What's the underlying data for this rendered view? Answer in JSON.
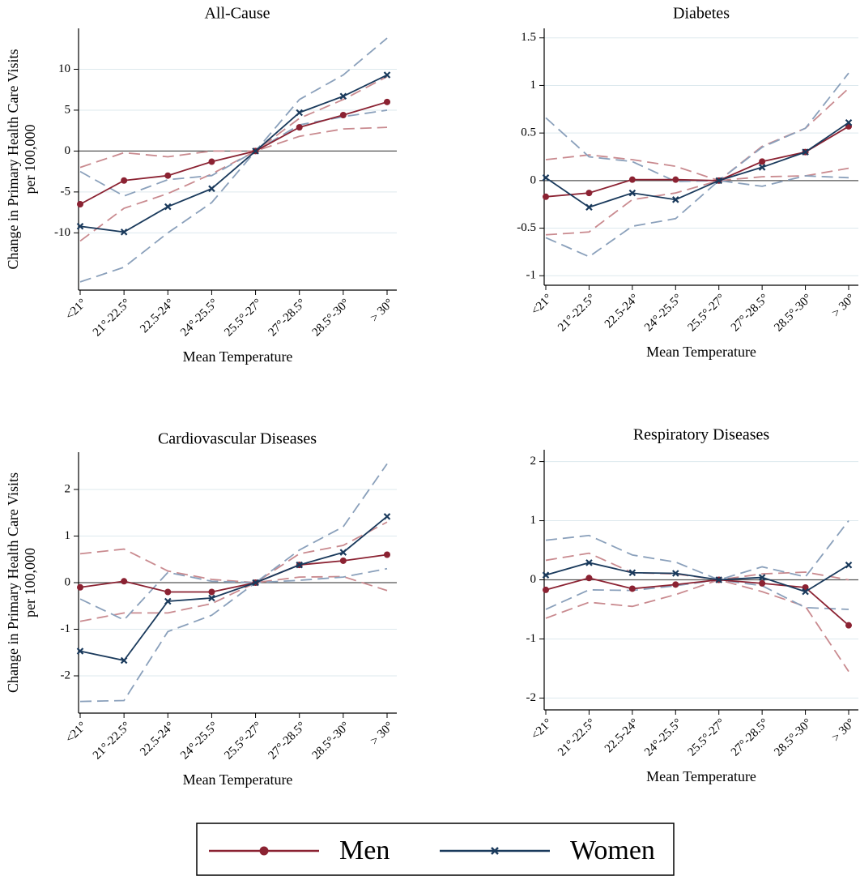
{
  "chart_data": [
    {
      "type": "line",
      "title": "All-Cause",
      "ylabel": [
        "Change in Primary Health Care Visits",
        "per 100,000"
      ],
      "xlabel": "Mean Temperature",
      "categories": [
        "<21°",
        "21°-22.5°",
        "22.5-24°",
        "24°-25.5°",
        "25.5°-27°",
        "27°-28.5°",
        "28.5°-30°",
        "> 30°"
      ],
      "ylim": [
        -17,
        15
      ],
      "yticks": [
        -10,
        -5,
        0,
        5,
        10
      ],
      "grid": true,
      "series": [
        {
          "name": "Men",
          "color": "#8b2232",
          "ci_color": "#c98a8f",
          "marker": "circle",
          "values": [
            -6.5,
            -3.6,
            -3.0,
            -1.3,
            0,
            2.9,
            4.4,
            6.0
          ],
          "ci_lower": [
            -11,
            -7,
            -5.2,
            -2.8,
            0,
            1.8,
            2.7,
            2.9
          ],
          "ci_upper": [
            -2,
            -0.2,
            -0.7,
            0,
            0,
            4,
            6.3,
            9.1
          ]
        },
        {
          "name": "Women",
          "color": "#1a3a5c",
          "ci_color": "#8aa0bb",
          "marker": "x",
          "values": [
            -9.2,
            -9.9,
            -6.8,
            -4.6,
            0,
            4.7,
            6.7,
            9.3
          ],
          "ci_lower": [
            -16,
            -14.2,
            -10,
            -6.3,
            0,
            3.2,
            4.2,
            5
          ],
          "ci_upper": [
            -2.5,
            -5.5,
            -3.5,
            -3,
            0,
            6.3,
            9.3,
            13.8
          ]
        }
      ]
    },
    {
      "type": "line",
      "title": "Diabetes",
      "xlabel": "Mean Temperature",
      "categories": [
        "<21°",
        "21°-22.5°",
        "22.5-24°",
        "24°-25.5°",
        "25.5°-27°",
        "27°-28.5°",
        "28.5°-30°",
        "> 30°"
      ],
      "ylim": [
        -1.1,
        1.6
      ],
      "yticks": [
        -1,
        -0.5,
        0,
        0.5,
        1,
        1.5
      ],
      "grid": true,
      "series": [
        {
          "color": "#8b2232",
          "ci_color": "#c98a8f",
          "marker": "circle",
          "values": [
            -0.17,
            -0.13,
            0.01,
            0.01,
            0,
            0.2,
            0.3,
            0.57
          ],
          "ci_lower": [
            -0.57,
            -0.54,
            -0.2,
            -0.13,
            0,
            0.04,
            0.05,
            0.13
          ],
          "ci_upper": [
            0.22,
            0.27,
            0.22,
            0.15,
            0,
            0.36,
            0.55,
            0.97
          ]
        },
        {
          "color": "#1a3a5c",
          "ci_color": "#8aa0bb",
          "marker": "x",
          "values": [
            0.03,
            -0.28,
            -0.13,
            -0.2,
            0,
            0.14,
            0.3,
            0.61
          ],
          "ci_lower": [
            -0.6,
            -0.8,
            -0.48,
            -0.4,
            0,
            -0.06,
            0.05,
            0.03
          ],
          "ci_upper": [
            0.66,
            0.25,
            0.2,
            -0.01,
            0,
            0.35,
            0.55,
            1.13
          ]
        }
      ]
    },
    {
      "type": "line",
      "title": "Cardiovascular Diseases",
      "ylabel": [
        "Change in Primary Health Care Visits",
        "per 100,000"
      ],
      "xlabel": "Mean Temperature",
      "categories": [
        "<21°",
        "21°-22.5°",
        "22.5-24°",
        "24°-25.5°",
        "25.5°-27°",
        "27°-28.5°",
        "28.5°-30°",
        "> 30°"
      ],
      "ylim": [
        -2.8,
        2.8
      ],
      "yticks": [
        -2,
        -1,
        0,
        1,
        2
      ],
      "grid": true,
      "series": [
        {
          "color": "#8b2232",
          "ci_color": "#c98a8f",
          "marker": "circle",
          "values": [
            -0.1,
            0.03,
            -0.2,
            -0.2,
            0,
            0.38,
            0.47,
            0.6
          ],
          "ci_lower": [
            -0.83,
            -0.65,
            -0.65,
            -0.45,
            0,
            0.12,
            0.13,
            -0.17
          ],
          "ci_upper": [
            0.62,
            0.72,
            0.25,
            0.07,
            0,
            0.62,
            0.8,
            1.3
          ]
        },
        {
          "color": "#1a3a5c",
          "ci_color": "#8aa0bb",
          "marker": "x",
          "values": [
            -1.47,
            -1.67,
            -0.4,
            -0.33,
            0,
            0.38,
            0.65,
            1.42
          ],
          "ci_lower": [
            -2.55,
            -2.53,
            -1.05,
            -0.7,
            0,
            0.05,
            0.12,
            0.3
          ],
          "ci_upper": [
            -0.35,
            -0.8,
            0.22,
            0.03,
            0,
            0.7,
            1.2,
            2.55
          ]
        }
      ]
    },
    {
      "type": "line",
      "title": "Respiratory Diseases",
      "xlabel": "Mean Temperature",
      "categories": [
        "<21°",
        "21°-22.5°",
        "22.5-24°",
        "24°-25.5°",
        "25.5°-27°",
        "27°-28.5°",
        "28.5°-30°",
        "> 30°"
      ],
      "ylim": [
        -2.2,
        2.2
      ],
      "yticks": [
        -2,
        -1,
        0,
        1,
        2
      ],
      "grid": true,
      "series": [
        {
          "color": "#8b2232",
          "ci_color": "#c98a8f",
          "marker": "circle",
          "values": [
            -0.17,
            0.03,
            -0.15,
            -0.08,
            0,
            -0.06,
            -0.13,
            -0.77
          ],
          "ci_lower": [
            -0.65,
            -0.38,
            -0.45,
            -0.25,
            0,
            -0.2,
            -0.45,
            -1.55
          ],
          "ci_upper": [
            0.33,
            0.45,
            0.12,
            0.1,
            0,
            0.1,
            0.13,
            0
          ]
        },
        {
          "color": "#1a3a5c",
          "ci_color": "#8aa0bb",
          "marker": "x",
          "values": [
            0.08,
            0.29,
            0.12,
            0.11,
            0,
            0.04,
            -0.2,
            0.25
          ],
          "ci_lower": [
            -0.5,
            -0.17,
            -0.18,
            -0.1,
            0,
            -0.1,
            -0.47,
            -0.5
          ],
          "ci_upper": [
            0.67,
            0.75,
            0.42,
            0.3,
            0,
            0.22,
            0.05,
            1.0
          ]
        }
      ]
    }
  ]
}
